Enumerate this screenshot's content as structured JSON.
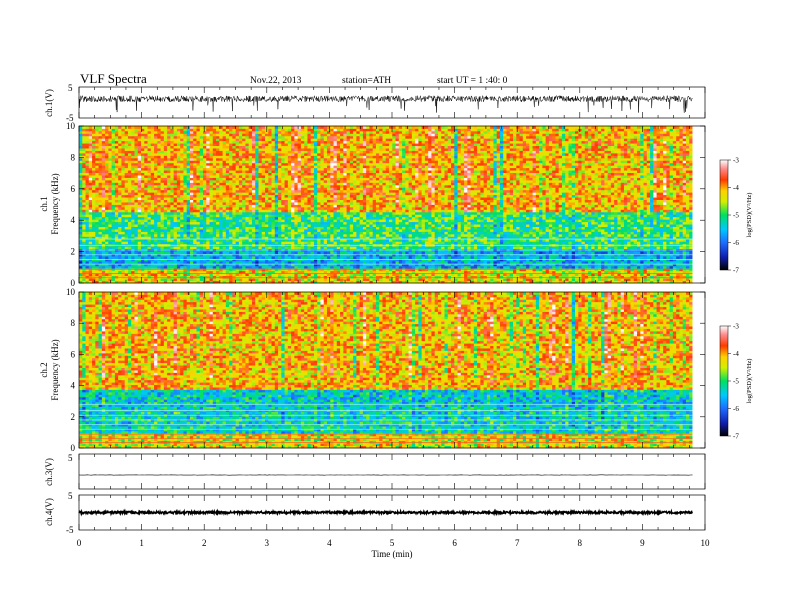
{
  "header": {
    "title": "VLF Spectra",
    "date": "Nov.22, 2013",
    "station": "station=ATH",
    "start": "start  UT =   1 :40: 0"
  },
  "chart_data": [
    {
      "type": "line",
      "panel": "ch1-waveform",
      "ylabel": "ch.1(V)",
      "ylim": [
        -5,
        5
      ],
      "yticks": [
        -5,
        5
      ],
      "xlim": [
        0,
        10
      ],
      "x_data_end": 9.8,
      "description_values": {
        "baseline": 1.2,
        "noise_amplitude": 1.0,
        "spike_min": -3.5
      },
      "color": "#000000"
    },
    {
      "type": "heatmap",
      "panel": "ch1-spectrogram",
      "ylabel": "ch.1\nFrequency (kHz)",
      "ylabel_channel": "ch.1",
      "ylabel_quantity": "Frequency (kHz)",
      "ylim": [
        0,
        10
      ],
      "yticks": [
        0,
        2,
        4,
        6,
        8,
        10
      ],
      "xlim": [
        0,
        10
      ],
      "x_data_end": 9.8,
      "colorbar": {
        "label": "log(PSD)(V²/Hz)",
        "range": [
          -7,
          -3
        ],
        "ticks": [
          -3,
          -4,
          -5,
          -6,
          -7
        ]
      },
      "bands": [
        {
          "f_min": 0,
          "f_max": 1.0,
          "log_psd": -4.3
        },
        {
          "f_min": 1.0,
          "f_max": 2.2,
          "log_psd": -5.6
        },
        {
          "f_min": 2.2,
          "f_max": 4.5,
          "log_psd": -5.0
        },
        {
          "f_min": 4.5,
          "f_max": 10,
          "log_psd": -4.1
        }
      ]
    },
    {
      "type": "heatmap",
      "panel": "ch2-spectrogram",
      "ylabel": "ch.2\nFrequency (kHz)",
      "ylabel_channel": "ch.2",
      "ylabel_quantity": "Frequency (kHz)",
      "ylim": [
        0,
        10
      ],
      "yticks": [
        0,
        2,
        4,
        6,
        8,
        10
      ],
      "xlim": [
        0,
        10
      ],
      "x_data_end": 9.8,
      "colorbar": {
        "label": "log(PSD)(V²/Hz)",
        "range": [
          -7,
          -3
        ],
        "ticks": [
          -3,
          -4,
          -5,
          -6,
          -7
        ]
      },
      "bands": [
        {
          "f_min": 0,
          "f_max": 1.0,
          "log_psd": -4.4
        },
        {
          "f_min": 1.0,
          "f_max": 2.5,
          "log_psd": -5.3
        },
        {
          "f_min": 2.5,
          "f_max": 3.8,
          "log_psd": -5.4
        },
        {
          "f_min": 3.8,
          "f_max": 10,
          "log_psd": -4.1
        }
      ]
    },
    {
      "type": "line",
      "panel": "ch3-waveform",
      "ylabel": "ch.3(V)",
      "ylim": [
        -5,
        5
      ],
      "yticks": [
        5
      ],
      "xlim": [
        0,
        10
      ],
      "x_data_end": 9.8,
      "description_values": {
        "baseline": -1.0,
        "noise_amplitude": 0.05
      },
      "color": "#000000"
    },
    {
      "type": "line",
      "panel": "ch4-waveform",
      "ylabel": "ch.4(V)",
      "ylim": [
        -5,
        5
      ],
      "yticks": [
        -5,
        5
      ],
      "xlim": [
        0,
        10
      ],
      "x_data_end": 9.8,
      "description_values": {
        "baseline": 0,
        "noise_amplitude": 0.3
      },
      "color": "#000000",
      "xlabel": "Time (min)",
      "xticks": [
        0,
        1,
        2,
        3,
        4,
        5,
        6,
        7,
        8,
        9,
        10
      ]
    }
  ]
}
